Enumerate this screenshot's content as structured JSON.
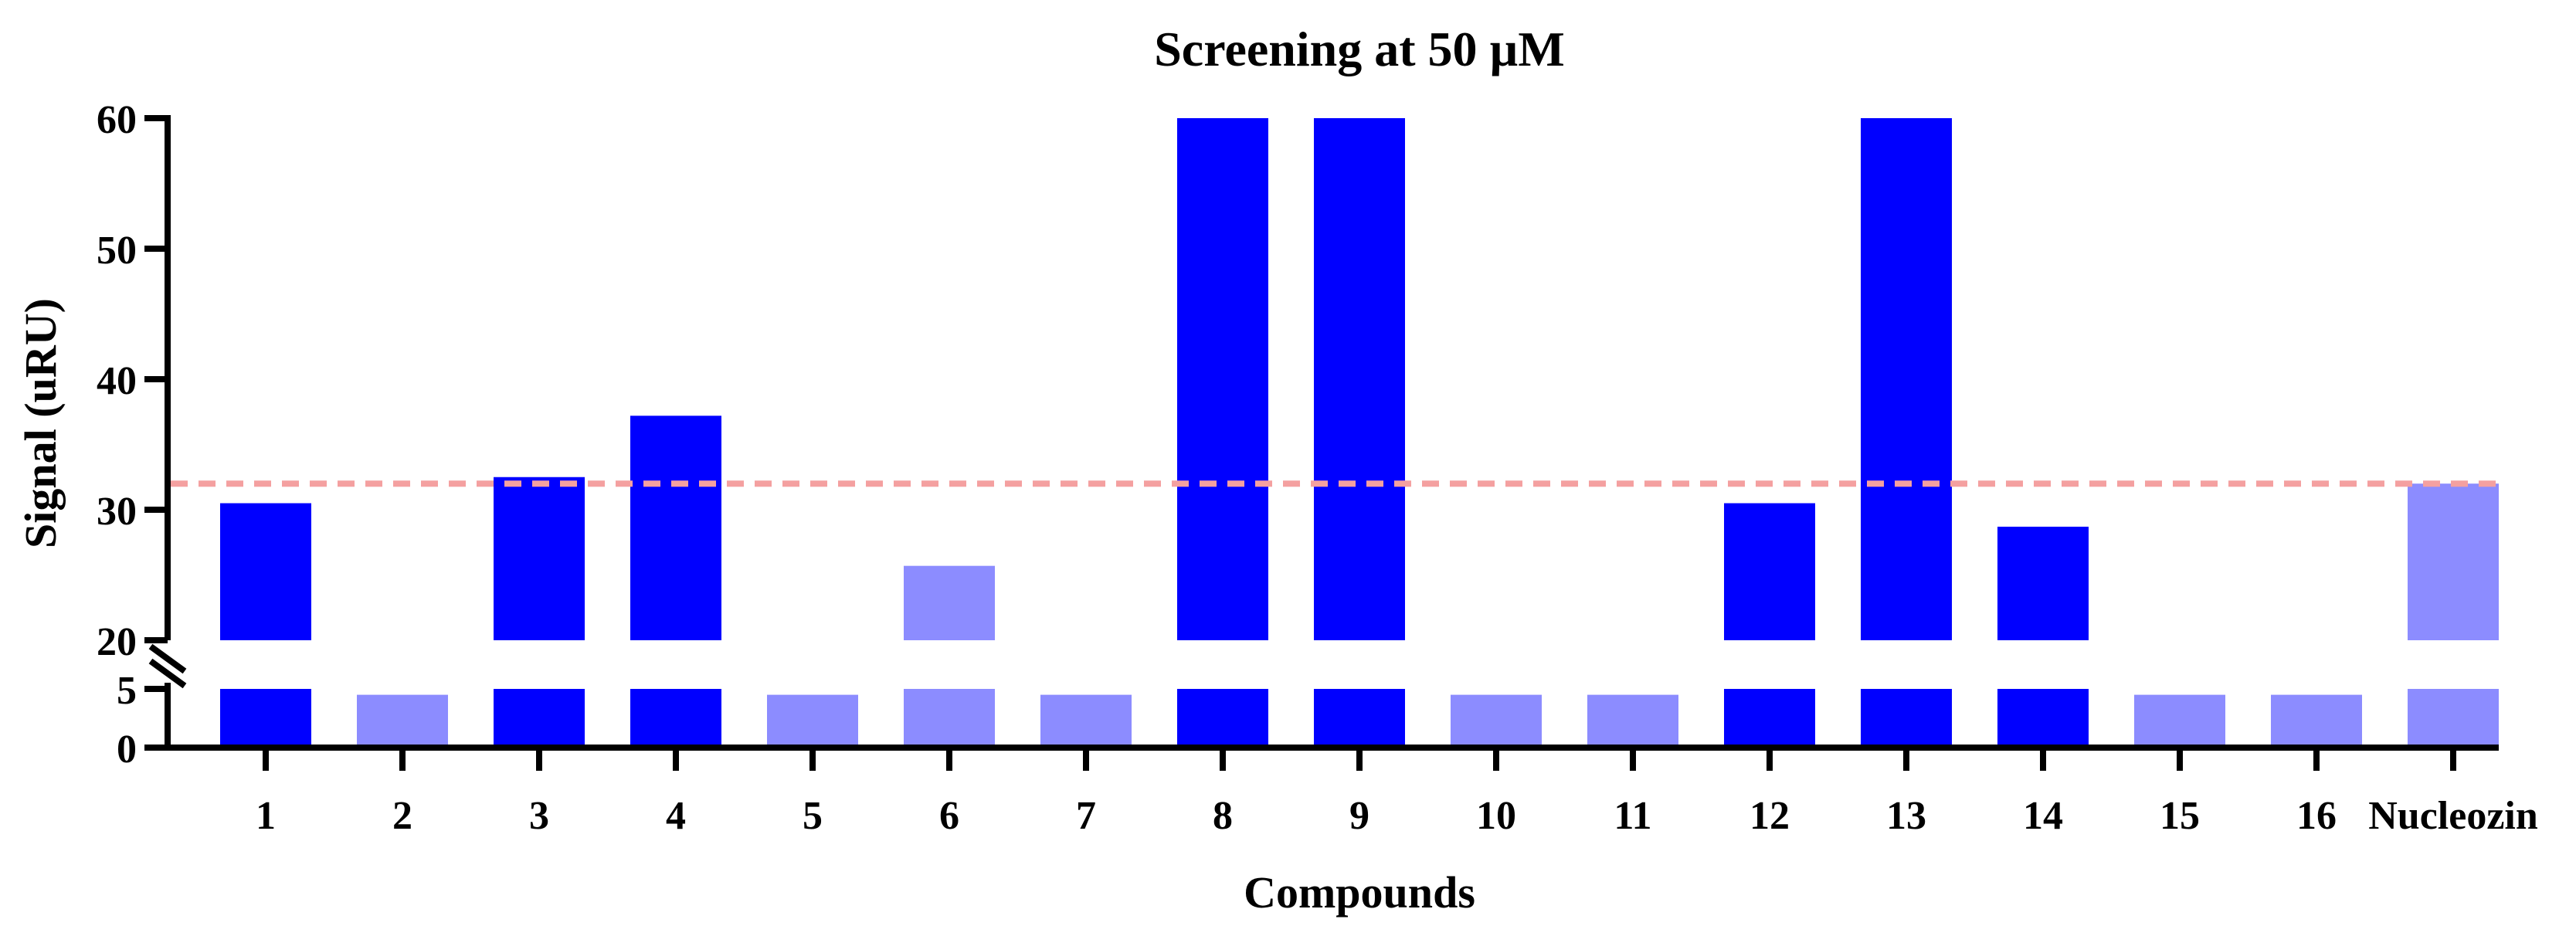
{
  "chart_data": {
    "type": "bar",
    "title": "Screening at 50 µM",
    "xlabel": "Compounds",
    "ylabel": "Signal (uRU)",
    "categories": [
      "1",
      "2",
      "3",
      "4",
      "5",
      "6",
      "7",
      "8",
      "9",
      "10",
      "11",
      "12",
      "13",
      "14",
      "15",
      "16",
      "Nucleozin"
    ],
    "values": [
      30.5,
      4.5,
      32.5,
      37.2,
      4.5,
      25.7,
      4.5,
      60,
      60,
      4.5,
      4.5,
      30.5,
      60,
      28.7,
      4.5,
      4.5,
      32
    ],
    "highlighted": [
      true,
      false,
      true,
      true,
      false,
      false,
      false,
      true,
      true,
      false,
      false,
      true,
      true,
      true,
      false,
      false,
      false
    ],
    "threshold": 32,
    "y_axis_segments": [
      {
        "range": [
          0,
          5
        ],
        "ticks": [
          "0",
          "5"
        ]
      },
      {
        "range": [
          20,
          60
        ],
        "ticks": [
          "20",
          "30",
          "40",
          "50",
          "60"
        ]
      }
    ],
    "colors": {
      "highlight": "#0000ff",
      "normal": "#8c8cff",
      "threshold": "#f4a0a0",
      "axis": "#000000"
    },
    "grid": false,
    "legend": "none"
  }
}
